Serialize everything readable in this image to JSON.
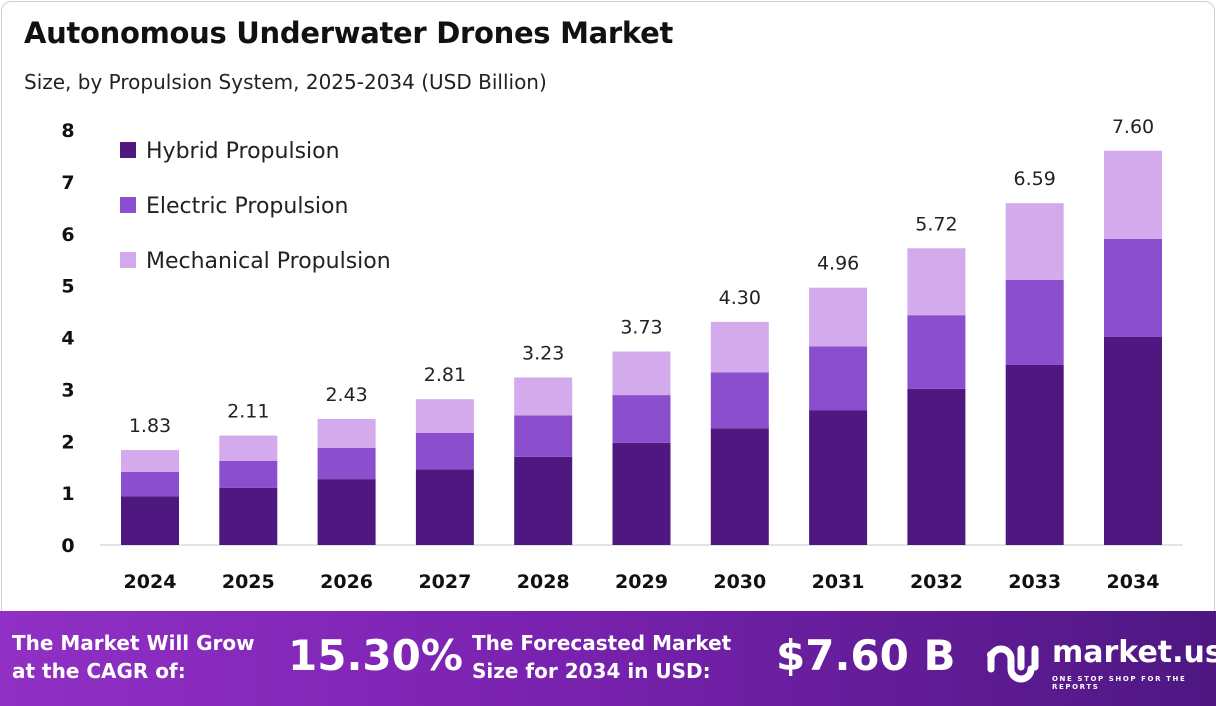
{
  "chart_data": {
    "type": "bar",
    "stacked": true,
    "title": "Autonomous Underwater Drones Market",
    "subtitle": "Size, by Propulsion System, 2025-2034 (USD Billion)",
    "categories": [
      "2024",
      "2025",
      "2026",
      "2027",
      "2028",
      "2029",
      "2030",
      "2031",
      "2032",
      "2033",
      "2034"
    ],
    "series": [
      {
        "name": "Hybrid Propulsion",
        "color": "#4f1780",
        "values": [
          0.94,
          1.1,
          1.27,
          1.46,
          1.7,
          1.97,
          2.25,
          2.6,
          3.01,
          3.47,
          4.01
        ]
      },
      {
        "name": "Electric Propulsion",
        "color": "#8b4fcd",
        "values": [
          0.47,
          0.52,
          0.6,
          0.7,
          0.8,
          0.92,
          1.08,
          1.23,
          1.42,
          1.64,
          1.89
        ]
      },
      {
        "name": "Mechanical Propulsion",
        "color": "#d3aaeb",
        "values": [
          0.42,
          0.49,
          0.56,
          0.65,
          0.73,
          0.84,
          0.97,
          1.13,
          1.29,
          1.48,
          1.7
        ]
      }
    ],
    "totals": [
      "1.83",
      "2.11",
      "2.43",
      "2.81",
      "3.23",
      "3.73",
      "4.30",
      "4.96",
      "5.72",
      "6.59",
      "7.60"
    ],
    "yticks": [
      "0",
      "1",
      "2",
      "3",
      "4",
      "5",
      "6",
      "7",
      "8"
    ],
    "ylim": [
      0,
      8
    ],
    "grid": false,
    "legend": "top-left"
  },
  "footer": {
    "cagr_label": [
      "The Market Will Grow",
      "at the CAGR of:"
    ],
    "cagr_value": "15.30%",
    "forecast_label": [
      "The Forecasted Market",
      "Size for 2034 in USD:"
    ],
    "forecast_value": "$7.60 B",
    "brand": "market.us",
    "tagline": "ONE STOP SHOP FOR THE REPORTS"
  }
}
